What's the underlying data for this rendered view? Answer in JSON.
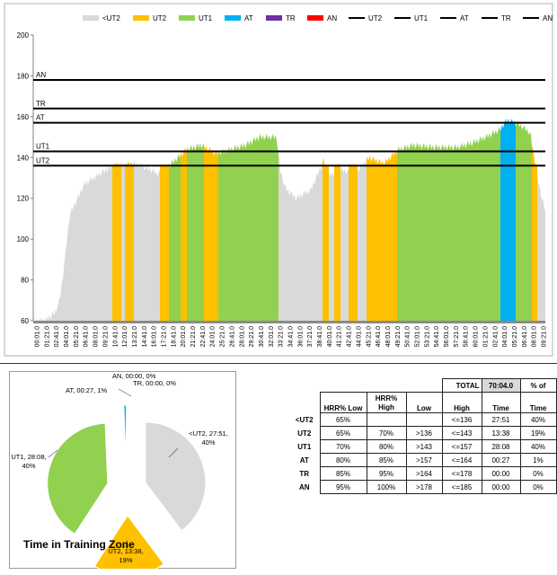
{
  "chart_data": [
    {
      "type": "area",
      "title": "",
      "legend": {
        "position": "top",
        "entries": [
          {
            "label": "<UT2",
            "kind": "fill",
            "color": "#d9d9d9"
          },
          {
            "label": "UT2",
            "kind": "fill",
            "color": "#ffc000"
          },
          {
            "label": "UT1",
            "kind": "fill",
            "color": "#92d050"
          },
          {
            "label": "AT",
            "kind": "fill",
            "color": "#00b0f0"
          },
          {
            "label": "TR",
            "kind": "fill",
            "color": "#7030a0"
          },
          {
            "label": "AN",
            "kind": "fill",
            "color": "#ff0000"
          },
          {
            "label": "UT2",
            "kind": "line",
            "color": "#000000"
          },
          {
            "label": "UT1",
            "kind": "line",
            "color": "#000000"
          },
          {
            "label": "AT",
            "kind": "line",
            "color": "#000000"
          },
          {
            "label": "TR",
            "kind": "line",
            "color": "#000000"
          },
          {
            "label": "AN",
            "kind": "line",
            "color": "#000000"
          }
        ]
      },
      "ylim": [
        60,
        200
      ],
      "yticks": [
        60,
        80,
        100,
        120,
        140,
        160,
        180,
        200
      ],
      "grid": false,
      "xlabels": [
        "00:01.0",
        "01:21.0",
        "02:41.0",
        "04:01.0",
        "05:21.0",
        "06:41.0",
        "08:01.0",
        "09:21.0",
        "10:41.0",
        "12:01.0",
        "13:21.0",
        "14:41.0",
        "16:01.0",
        "17:21.0",
        "18:41.0",
        "20:01.0",
        "21:21.0",
        "22:41.0",
        "24:01.0",
        "25:21.0",
        "26:41.0",
        "28:01.0",
        "29:21.0",
        "30:41.0",
        "32:01.0",
        "33:21.0",
        "34:41.0",
        "36:01.0",
        "37:21.0",
        "38:41.0",
        "40:01.0",
        "41:21.0",
        "42:41.0",
        "44:01.0",
        "45:21.0",
        "46:41.0",
        "48:01.0",
        "49:21.0",
        "50:41.0",
        "52:01.0",
        "53:21.0",
        "54:41.0",
        "56:01.0",
        "57:21.0",
        "58:41.0",
        "60:01.0",
        "01:21.0",
        "02:41.0",
        "04:01.0",
        "05:21.0",
        "06:41.0",
        "08:01.0",
        "09:21.0"
      ],
      "thresholds": [
        {
          "label": "AN",
          "value": 178
        },
        {
          "label": "TR",
          "value": 164
        },
        {
          "label": "AT",
          "value": 157
        },
        {
          "label": "UT1",
          "value": 143
        },
        {
          "label": "UT2",
          "value": 136
        }
      ],
      "hr_profile": {
        "x_min": [
          0,
          1.5,
          3,
          3.6,
          4,
          5,
          7,
          10,
          11,
          14,
          16,
          17,
          18,
          21,
          23,
          25,
          29,
          31,
          32.5,
          33.3,
          33.8,
          34.5,
          36,
          38,
          39.2,
          39.8,
          40,
          42,
          44,
          46,
          48,
          50,
          52,
          55,
          58,
          60,
          62,
          64,
          64.5,
          65,
          66,
          67,
          68,
          68.7,
          69.3,
          70
        ],
        "bpm": [
          60,
          60,
          64,
          70,
          80,
          112,
          127,
          134,
          136,
          137,
          134,
          132,
          134,
          144,
          146,
          142,
          146,
          150,
          150,
          150,
          134,
          125,
          120,
          124,
          134,
          139,
          130,
          134,
          132,
          140,
          137,
          144,
          146,
          145,
          145,
          147,
          150,
          154,
          157,
          158,
          157,
          155,
          152,
          138,
          125,
          115
        ]
      },
      "zone_segments": [
        {
          "zone": "<UT2",
          "start_min": 0,
          "end_min": 10.8
        },
        {
          "zone": "UT2",
          "start_min": 10.8,
          "end_min": 12.0
        },
        {
          "zone": "<UT2",
          "start_min": 12.0,
          "end_min": 12.6
        },
        {
          "zone": "UT2",
          "start_min": 12.6,
          "end_min": 13.8
        },
        {
          "zone": "<UT2",
          "start_min": 13.8,
          "end_min": 17.4
        },
        {
          "zone": "UT2",
          "start_min": 17.4,
          "end_min": 18.6
        },
        {
          "zone": "UT1",
          "start_min": 18.6,
          "end_min": 20.2
        },
        {
          "zone": "UT2",
          "start_min": 20.2,
          "end_min": 21.0
        },
        {
          "zone": "UT1",
          "start_min": 21.0,
          "end_min": 23.4
        },
        {
          "zone": "UT2",
          "start_min": 23.4,
          "end_min": 25.3
        },
        {
          "zone": "UT1",
          "start_min": 25.3,
          "end_min": 33.6
        },
        {
          "zone": "<UT2",
          "start_min": 33.6,
          "end_min": 39.6
        },
        {
          "zone": "UT2",
          "start_min": 39.6,
          "end_min": 40.4
        },
        {
          "zone": "<UT2",
          "start_min": 40.4,
          "end_min": 41.2
        },
        {
          "zone": "UT2",
          "start_min": 41.2,
          "end_min": 42.0
        },
        {
          "zone": "<UT2",
          "start_min": 42.0,
          "end_min": 43.2
        },
        {
          "zone": "UT2",
          "start_min": 43.2,
          "end_min": 44.4
        },
        {
          "zone": "<UT2",
          "start_min": 44.4,
          "end_min": 45.6
        },
        {
          "zone": "UT2",
          "start_min": 45.6,
          "end_min": 49.8
        },
        {
          "zone": "UT1",
          "start_min": 49.8,
          "end_min": 64.0
        },
        {
          "zone": "AT",
          "start_min": 64.0,
          "end_min": 66.0
        },
        {
          "zone": "UT1",
          "start_min": 66.0,
          "end_min": 68.2
        },
        {
          "zone": "UT2",
          "start_min": 68.2,
          "end_min": 69.0
        },
        {
          "zone": "<UT2",
          "start_min": 69.0,
          "end_min": 70.1
        }
      ]
    },
    {
      "type": "pie",
      "title": "Time in Training Zone",
      "slices": [
        {
          "label": "<UT2, 27:51, 40%",
          "zone": "<UT2",
          "time": "27:51",
          "percent": 40,
          "value": 27.85,
          "color": "#d9d9d9"
        },
        {
          "label": "UT2, 13:38, 19%",
          "zone": "UT2",
          "time": "13:38",
          "percent": 19,
          "value": 13.63,
          "color": "#ffc000"
        },
        {
          "label": "UT1, 28:08, 40%",
          "zone": "UT1",
          "time": "28:08",
          "percent": 40,
          "value": 28.13,
          "color": "#92d050"
        },
        {
          "label": "AT, 00:27, 1%",
          "zone": "AT",
          "time": "00:27",
          "percent": 1,
          "value": 0.45,
          "color": "#00b0f0"
        },
        {
          "label": "TR, 00:00, 0%",
          "zone": "TR",
          "time": "00:00",
          "percent": 0,
          "value": 0,
          "color": "#7030a0"
        },
        {
          "label": "AN, 00:00, 0%",
          "zone": "AN",
          "time": "00:00",
          "percent": 0,
          "value": 0,
          "color": "#ff0000"
        }
      ]
    }
  ],
  "zone_table": {
    "total_label": "TOTAL",
    "total_time": "70:04.0",
    "pct_of_label": "% of",
    "headers": [
      "HRR% Low",
      "HRR% High",
      "Low",
      "High",
      "Time",
      "Time"
    ],
    "rows": [
      {
        "zone": "<UT2",
        "hrr_low": "65%",
        "hrr_high": "",
        "low": "",
        "high": "<=136",
        "time": "27:51",
        "pct": "40%"
      },
      {
        "zone": "UT2",
        "hrr_low": "65%",
        "hrr_high": "70%",
        "low": ">136",
        "high": "<=143",
        "time": "13:38",
        "pct": "19%"
      },
      {
        "zone": "UT1",
        "hrr_low": "70%",
        "hrr_high": "80%",
        "low": ">143",
        "high": "<=157",
        "time": "28:08",
        "pct": "40%"
      },
      {
        "zone": "AT",
        "hrr_low": "80%",
        "hrr_high": "85%",
        "low": ">157",
        "high": "<=164",
        "time": "00:27",
        "pct": "1%"
      },
      {
        "zone": "TR",
        "hrr_low": "85%",
        "hrr_high": "95%",
        "low": ">164",
        "high": "<=178",
        "time": "00:00",
        "pct": "0%"
      },
      {
        "zone": "AN",
        "hrr_low": "95%",
        "hrr_high": "100%",
        "low": ">178",
        "high": "<=185",
        "time": "00:00",
        "pct": "0%"
      }
    ]
  }
}
